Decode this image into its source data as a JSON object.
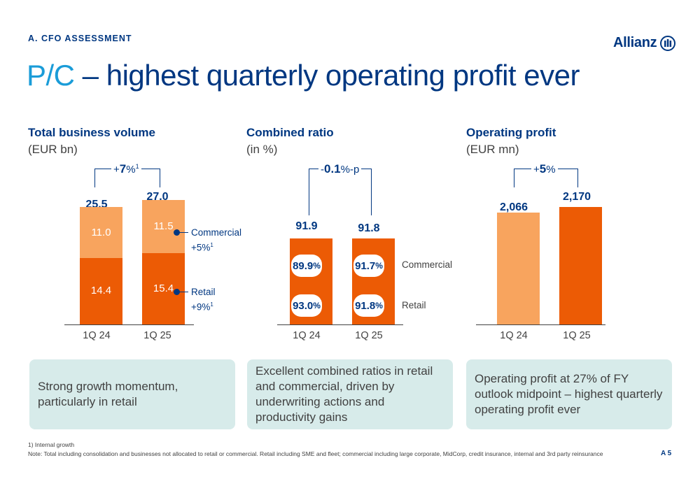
{
  "header": {
    "section_label": "A. CFO ASSESSMENT",
    "title_prefix": "P/C",
    "title_rest": " – highest quarterly operating profit ever",
    "logo_text": "Allianz",
    "logo_icon": "allianz-eagle-icon"
  },
  "colors": {
    "dark_orange": "#ec5b05",
    "light_orange": "#f8a45e",
    "navy": "#003781",
    "accent_blue": "#1a9cd8",
    "box_bg": "#d7ebea"
  },
  "chart_data": [
    {
      "type": "bar",
      "stacked": true,
      "title": "Total business volume",
      "subtitle": "(EUR bn)",
      "categories": [
        "1Q 24",
        "1Q 25"
      ],
      "series": [
        {
          "name": "Retail",
          "values": [
            14.4,
            15.4
          ],
          "labels": [
            "14.4",
            "15.4"
          ],
          "growth": "+9%",
          "growth_note": "1"
        },
        {
          "name": "Commercial",
          "values": [
            11.0,
            11.5
          ],
          "labels": [
            "11.0",
            "11.5"
          ],
          "growth": "+5%",
          "growth_note": "1"
        }
      ],
      "totals": [
        "25.5",
        "27.0"
      ],
      "growth": {
        "sign": "+",
        "value": "7",
        "unit": "%",
        "note": "1"
      }
    },
    {
      "type": "bar",
      "title": "Combined ratio",
      "subtitle": "(in %)",
      "categories": [
        "1Q 24",
        "1Q 25"
      ],
      "values": [
        91.9,
        91.8
      ],
      "totals": [
        "91.9",
        "91.8"
      ],
      "segments": [
        {
          "name": "Commercial",
          "values": [
            "89.9",
            "91.7"
          ]
        },
        {
          "name": "Retail",
          "values": [
            "93.0",
            "91.8"
          ]
        }
      ],
      "segment_unit": "%",
      "growth": {
        "sign": "-",
        "value": "0.1",
        "unit": "%-p",
        "note": ""
      }
    },
    {
      "type": "bar",
      "title": "Operating profit",
      "subtitle": "(EUR mn)",
      "categories": [
        "1Q 24",
        "1Q 25"
      ],
      "values": [
        2066,
        2170
      ],
      "totals": [
        "2,066",
        "2,170"
      ],
      "growth": {
        "sign": "+",
        "value": "5",
        "unit": "%",
        "note": ""
      }
    }
  ],
  "boxes": [
    "Strong growth momentum, particularly in retail",
    "Excellent combined ratios in retail and commercial, driven by underwriting actions and productivity gains",
    "Operating profit at 27% of FY outlook midpoint – highest quarterly operating profit ever"
  ],
  "footnotes": {
    "f1": "1)   Internal growth",
    "note": "Note: Total including consolidation and businesses not allocated to retail or commercial. Retail including SME and fleet; commercial including large corporate, MidCorp, credit insurance, internal and 3rd party reinsurance"
  },
  "page_number": "A 5"
}
